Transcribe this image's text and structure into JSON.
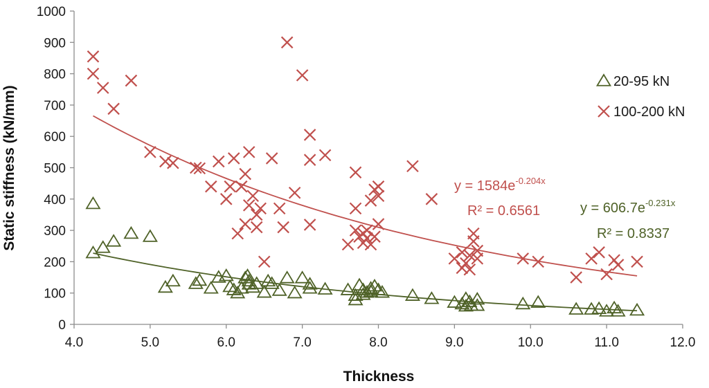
{
  "chart_data": {
    "type": "scatter",
    "xlabel": "Thickness",
    "ylabel": "Static stiffness (kN/mm)",
    "xlim": [
      4.0,
      12.0
    ],
    "ylim": [
      0,
      1000
    ],
    "x_ticks": [
      "4.0",
      "5.0",
      "6.0",
      "7.0",
      "8.0",
      "9.0",
      "10.0",
      "11.0",
      "12.0"
    ],
    "y_ticks": [
      "0",
      "100",
      "200",
      "300",
      "400",
      "500",
      "600",
      "700",
      "800",
      "900",
      "1000"
    ],
    "grid": false,
    "legend_position": "right",
    "series": [
      {
        "name": "20-95 kN",
        "marker": "triangle-open",
        "color": "#4f6228",
        "trend": {
          "type": "exponential",
          "a": 606.7,
          "b": -0.231,
          "x_range": [
            4.25,
            11.4
          ]
        },
        "equation_base": "y = 606.7e",
        "equation_exp": "-0.231x",
        "r2_label": "R² = 0.8337",
        "points": [
          [
            4.25,
            385
          ],
          [
            4.25,
            228
          ],
          [
            4.38,
            245
          ],
          [
            4.52,
            265
          ],
          [
            4.75,
            290
          ],
          [
            5.0,
            280
          ],
          [
            5.2,
            118
          ],
          [
            5.3,
            138
          ],
          [
            5.6,
            130
          ],
          [
            5.65,
            140
          ],
          [
            5.8,
            115
          ],
          [
            5.9,
            150
          ],
          [
            6.0,
            155
          ],
          [
            6.05,
            120
          ],
          [
            6.1,
            110
          ],
          [
            6.15,
            100
          ],
          [
            6.2,
            115
          ],
          [
            6.25,
            148
          ],
          [
            6.28,
            155
          ],
          [
            6.3,
            128
          ],
          [
            6.3,
            138
          ],
          [
            6.35,
            118
          ],
          [
            6.4,
            130
          ],
          [
            6.5,
            102
          ],
          [
            6.55,
            138
          ],
          [
            6.6,
            130
          ],
          [
            6.7,
            108
          ],
          [
            6.8,
            148
          ],
          [
            6.9,
            100
          ],
          [
            7.0,
            148
          ],
          [
            7.1,
            128
          ],
          [
            7.1,
            115
          ],
          [
            7.3,
            112
          ],
          [
            7.6,
            110
          ],
          [
            7.7,
            92
          ],
          [
            7.7,
            78
          ],
          [
            7.75,
            125
          ],
          [
            7.8,
            110
          ],
          [
            7.8,
            95
          ],
          [
            7.85,
            102
          ],
          [
            7.9,
            115
          ],
          [
            7.9,
            105
          ],
          [
            7.95,
            122
          ],
          [
            8.0,
            110
          ],
          [
            8.05,
            102
          ],
          [
            8.45,
            92
          ],
          [
            8.7,
            82
          ],
          [
            9.0,
            70
          ],
          [
            9.1,
            65
          ],
          [
            9.15,
            82
          ],
          [
            9.15,
            58
          ],
          [
            9.2,
            72
          ],
          [
            9.22,
            60
          ],
          [
            9.3,
            80
          ],
          [
            9.3,
            60
          ],
          [
            9.9,
            65
          ],
          [
            10.1,
            70
          ],
          [
            10.6,
            48
          ],
          [
            10.8,
            48
          ],
          [
            10.9,
            50
          ],
          [
            11.0,
            42
          ],
          [
            11.1,
            52
          ],
          [
            11.15,
            42
          ],
          [
            11.4,
            45
          ]
        ]
      },
      {
        "name": "100-200 kN",
        "marker": "x",
        "color": "#c0504d",
        "trend": {
          "type": "exponential",
          "a": 1584,
          "b": -0.204,
          "x_range": [
            4.25,
            11.4
          ]
        },
        "equation_base": "y = 1584e",
        "equation_exp": "-0.204x",
        "r2_label": "R² = 0.6561",
        "points": [
          [
            4.25,
            855
          ],
          [
            4.25,
            800
          ],
          [
            4.38,
            755
          ],
          [
            4.52,
            688
          ],
          [
            4.75,
            778
          ],
          [
            5.0,
            550
          ],
          [
            5.2,
            520
          ],
          [
            5.3,
            515
          ],
          [
            5.6,
            500
          ],
          [
            5.65,
            498
          ],
          [
            5.8,
            440
          ],
          [
            5.9,
            520
          ],
          [
            6.0,
            400
          ],
          [
            6.05,
            440
          ],
          [
            6.1,
            530
          ],
          [
            6.15,
            290
          ],
          [
            6.2,
            440
          ],
          [
            6.25,
            320
          ],
          [
            6.25,
            480
          ],
          [
            6.3,
            550
          ],
          [
            6.3,
            380
          ],
          [
            6.35,
            410
          ],
          [
            6.4,
            310
          ],
          [
            6.4,
            350
          ],
          [
            6.45,
            370
          ],
          [
            6.5,
            200
          ],
          [
            6.6,
            530
          ],
          [
            6.7,
            370
          ],
          [
            6.75,
            310
          ],
          [
            6.8,
            900
          ],
          [
            6.9,
            420
          ],
          [
            7.0,
            795
          ],
          [
            7.1,
            605
          ],
          [
            7.1,
            525
          ],
          [
            7.1,
            318
          ],
          [
            7.3,
            540
          ],
          [
            7.6,
            255
          ],
          [
            7.7,
            485
          ],
          [
            7.7,
            370
          ],
          [
            7.7,
            300
          ],
          [
            7.75,
            280
          ],
          [
            7.8,
            260
          ],
          [
            7.8,
            290
          ],
          [
            7.85,
            275
          ],
          [
            7.85,
            300
          ],
          [
            7.9,
            255
          ],
          [
            7.9,
            395
          ],
          [
            7.95,
            280
          ],
          [
            7.95,
            430
          ],
          [
            8.0,
            440
          ],
          [
            8.0,
            320
          ],
          [
            8.0,
            410
          ],
          [
            8.45,
            505
          ],
          [
            8.7,
            400
          ],
          [
            9.0,
            210
          ],
          [
            9.1,
            230
          ],
          [
            9.1,
            180
          ],
          [
            9.15,
            195
          ],
          [
            9.2,
            175
          ],
          [
            9.2,
            220
          ],
          [
            9.25,
            265
          ],
          [
            9.25,
            290
          ],
          [
            9.3,
            235
          ],
          [
            9.3,
            210
          ],
          [
            9.9,
            210
          ],
          [
            10.1,
            200
          ],
          [
            10.6,
            150
          ],
          [
            10.8,
            210
          ],
          [
            10.9,
            230
          ],
          [
            11.0,
            160
          ],
          [
            11.1,
            205
          ],
          [
            11.15,
            190
          ],
          [
            11.4,
            200
          ]
        ]
      }
    ]
  }
}
